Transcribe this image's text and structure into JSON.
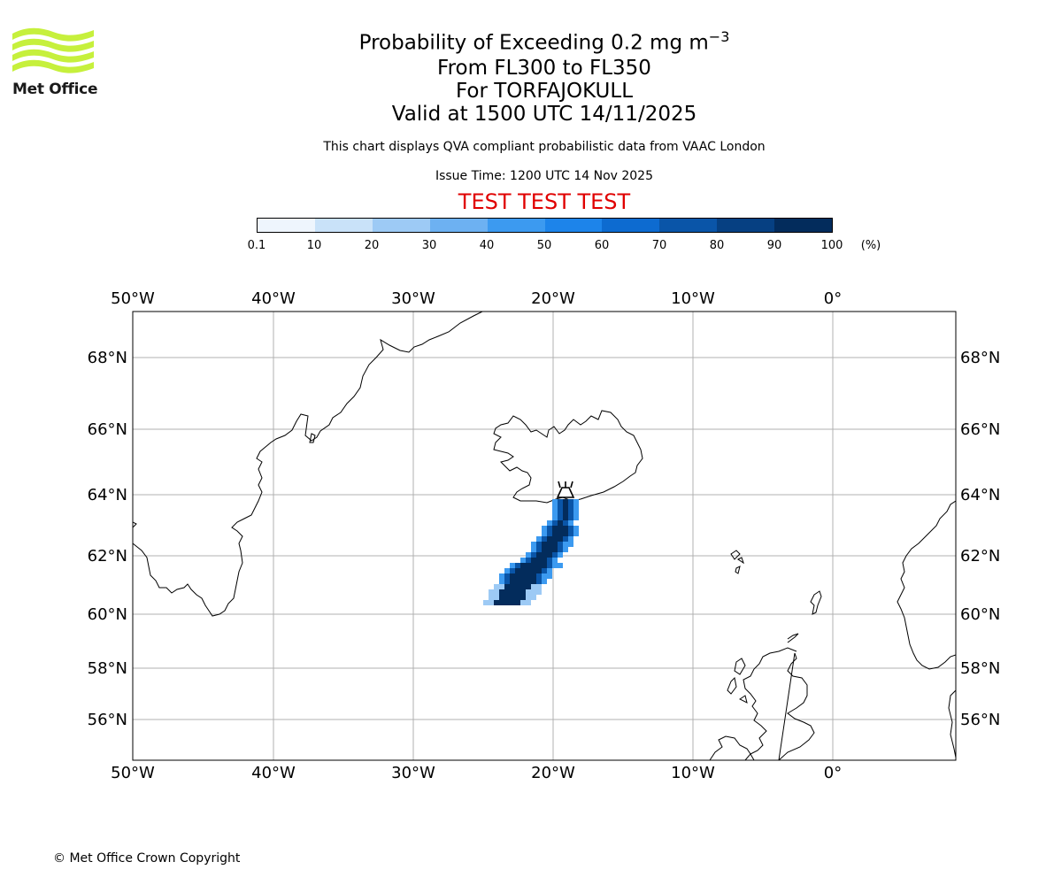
{
  "header": {
    "title_main": "Probability of Exceeding 0.2 mg m",
    "title_sup": "−3",
    "flight_levels": "From FL300 to FL350",
    "volcano_line": "For TORFAJOKULL",
    "valid_line": "Valid at 1500 UTC 14/11/2025",
    "description": "This chart displays QVA compliant probabilistic data from VAAC London",
    "issue_time": "Issue Time: 1200 UTC 14 Nov 2025",
    "test_banner": "TEST TEST TEST"
  },
  "logo": {
    "text": "Met Office",
    "color": "#c6f03c"
  },
  "colorbar": {
    "ticks": [
      "0.1",
      "10",
      "20",
      "30",
      "40",
      "50",
      "60",
      "70",
      "80",
      "90",
      "100"
    ],
    "unit": "(%)",
    "colors": [
      "#eef5fd",
      "#c9e2f9",
      "#9dcaf5",
      "#6db1f2",
      "#3c9af0",
      "#1d84ea",
      "#0d6bd0",
      "#0a55a8",
      "#064082",
      "#032c5c"
    ]
  },
  "map": {
    "lon_labels": [
      "50°W",
      "40°W",
      "30°W",
      "20°W",
      "10°W",
      "0°"
    ],
    "lat_labels": [
      "68°N",
      "66°N",
      "64°N",
      "62°N",
      "60°N",
      "58°N",
      "56°N"
    ],
    "volcano_marker": "TORFAJOKULL"
  },
  "footer": {
    "copyright": "© Met Office Crown Copyright"
  }
}
